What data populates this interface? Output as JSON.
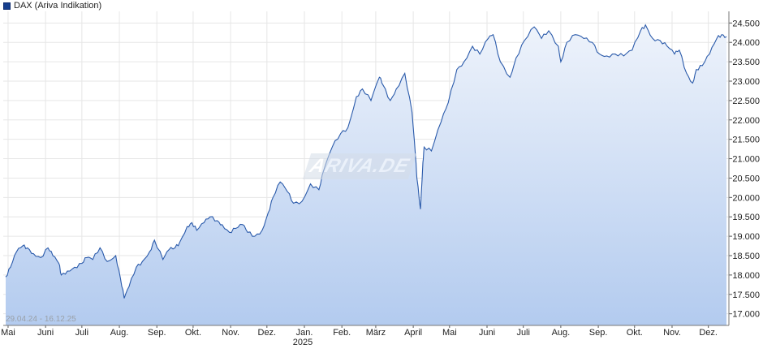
{
  "legend": {
    "label": "DAX (Ariva Indikation)"
  },
  "date_range": "29.04.24 - 16.12.25",
  "watermark": "ARIVA.DE",
  "colors": {
    "line": "#2a5aaa",
    "fill_top": "#eef3fb",
    "fill_bottom": "#b3cbef",
    "swatch": "#163f8e",
    "grid": "#e6e6e6"
  },
  "chart_data": {
    "type": "area",
    "title": "DAX (Ariva Indikation)",
    "x_tick_labels": [
      "Mai",
      "Juni",
      "Juli",
      "Aug.",
      "Sep.",
      "Okt.",
      "Nov.",
      "Dez.",
      "Jan.",
      "Feb.",
      "März",
      "April",
      "Mai",
      "Juni",
      "Juli",
      "Aug.",
      "Sep.",
      "Okt.",
      "Nov.",
      "Dez."
    ],
    "x_year_label": "2025",
    "y_ticks": [
      17000,
      17500,
      18000,
      18500,
      19000,
      19500,
      20000,
      20500,
      21000,
      21500,
      22000,
      22500,
      23000,
      23500,
      24000,
      24500
    ],
    "y_tick_labels": [
      "17.000",
      "17.500",
      "18.000",
      "18.500",
      "19.000",
      "19.500",
      "20.000",
      "20.500",
      "21.000",
      "21.500",
      "22.000",
      "22.500",
      "23.000",
      "23.500",
      "24.000",
      "24.500"
    ],
    "ylim": [
      16700,
      24800
    ],
    "grid": true,
    "series": [
      {
        "x": [
          "2024-04-29",
          "2024-05-03",
          "2024-05-08",
          "2024-05-13",
          "2024-05-17",
          "2024-05-22",
          "2024-05-28",
          "2024-06-03",
          "2024-06-07",
          "2024-06-12",
          "2024-06-14",
          "2024-06-19",
          "2024-06-25",
          "2024-07-01",
          "2024-07-05",
          "2024-07-10",
          "2024-07-16",
          "2024-07-22",
          "2024-07-29",
          "2024-08-02",
          "2024-08-05",
          "2024-08-09",
          "2024-08-15",
          "2024-08-20",
          "2024-08-26",
          "2024-08-30",
          "2024-09-06",
          "2024-09-11",
          "2024-09-16",
          "2024-09-20",
          "2024-09-26",
          "2024-09-30",
          "2024-10-04",
          "2024-10-10",
          "2024-10-15",
          "2024-10-21",
          "2024-10-25",
          "2024-10-31",
          "2024-11-05",
          "2024-11-11",
          "2024-11-15",
          "2024-11-21",
          "2024-11-27",
          "2024-12-02",
          "2024-12-06",
          "2024-12-12",
          "2024-12-18",
          "2024-12-23",
          "2024-12-30",
          "2025-01-06",
          "2025-01-13",
          "2025-01-17",
          "2025-01-24",
          "2025-01-31",
          "2025-02-06",
          "2025-02-13",
          "2025-02-18",
          "2025-02-25",
          "2025-03-04",
          "2025-03-07",
          "2025-03-13",
          "2025-03-18",
          "2025-03-25",
          "2025-03-31",
          "2025-04-03",
          "2025-04-04",
          "2025-04-07",
          "2025-04-09",
          "2025-04-10",
          "2025-04-16",
          "2025-04-24",
          "2025-04-30",
          "2025-05-07",
          "2025-05-13",
          "2025-05-20",
          "2025-05-26",
          "2025-06-02",
          "2025-06-06",
          "2025-06-12",
          "2025-06-20",
          "2025-06-25",
          "2025-07-02",
          "2025-07-10",
          "2025-07-16",
          "2025-07-22",
          "2025-07-30",
          "2025-08-01",
          "2025-08-06",
          "2025-08-13",
          "2025-08-20",
          "2025-08-27",
          "2025-09-02",
          "2025-09-08",
          "2025-09-15",
          "2025-09-22",
          "2025-09-29",
          "2025-10-06",
          "2025-10-10",
          "2025-10-16",
          "2025-10-22",
          "2025-10-28",
          "2025-11-03",
          "2025-11-07",
          "2025-11-13",
          "2025-11-18",
          "2025-11-21",
          "2025-11-26",
          "2025-12-02",
          "2025-12-08",
          "2025-12-12",
          "2025-12-16"
        ],
        "y": [
          17950,
          18200,
          18600,
          18750,
          18700,
          18550,
          18450,
          18700,
          18500,
          18300,
          18000,
          18100,
          18200,
          18300,
          18450,
          18400,
          18700,
          18350,
          18500,
          17900,
          17400,
          17700,
          18200,
          18350,
          18600,
          18900,
          18400,
          18650,
          18700,
          18850,
          19250,
          19350,
          19150,
          19350,
          19500,
          19400,
          19300,
          19100,
          19200,
          19300,
          19100,
          19000,
          19150,
          19600,
          20000,
          20400,
          20150,
          19850,
          19900,
          20350,
          20200,
          20700,
          21300,
          21650,
          21800,
          22600,
          22800,
          22500,
          23100,
          22900,
          22500,
          22800,
          23200,
          22200,
          21000,
          20500,
          19700,
          20900,
          21300,
          21200,
          21950,
          22450,
          23300,
          23500,
          23900,
          23700,
          24100,
          24200,
          23500,
          23100,
          23600,
          24050,
          24400,
          24100,
          24300,
          23900,
          23500,
          24000,
          24200,
          24100,
          24000,
          23700,
          23650,
          23700,
          23650,
          23800,
          24300,
          24450,
          24100,
          24050,
          23900,
          23700,
          23800,
          23200,
          22950,
          23300,
          23400,
          23700,
          24100,
          24200,
          24150
        ]
      }
    ]
  }
}
